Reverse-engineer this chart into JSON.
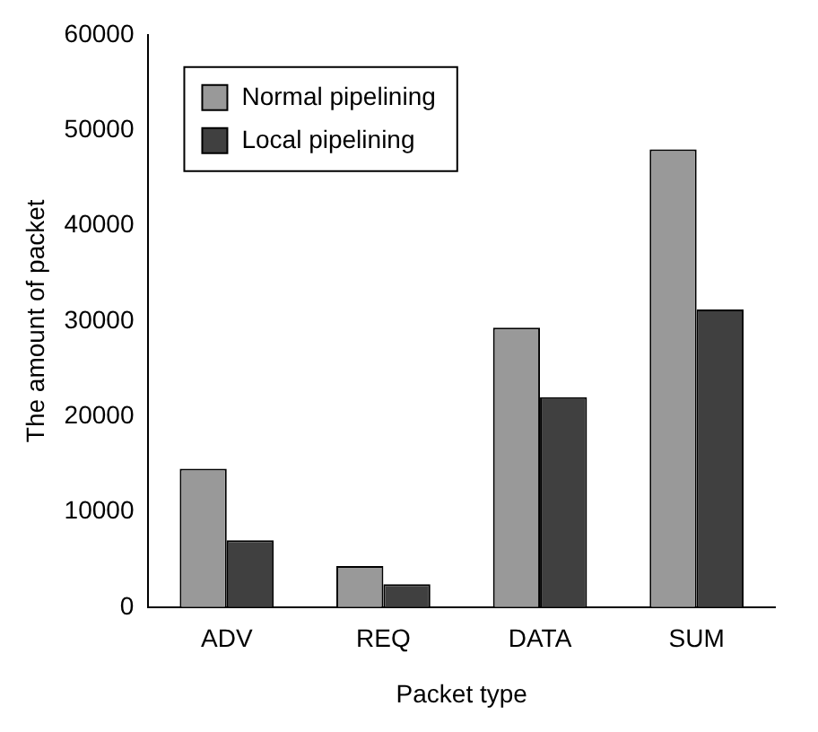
{
  "chart_data": {
    "type": "bar",
    "xlabel": "Packet type",
    "ylabel": "The amount of packet",
    "categories": [
      "ADV",
      "REQ",
      "DATA",
      "SUM"
    ],
    "series": [
      {
        "name": "Normal pipelining",
        "color": "#999999",
        "values": [
          14500,
          4300,
          29300,
          48000
        ]
      },
      {
        "name": "Local pipelining",
        "color": "#404040",
        "values": [
          7000,
          2400,
          22000,
          31200
        ]
      }
    ],
    "ylim": [
      0,
      60000
    ],
    "yticks": [
      0,
      10000,
      20000,
      30000,
      40000,
      50000,
      60000
    ],
    "grid": false,
    "legend": "top left"
  }
}
